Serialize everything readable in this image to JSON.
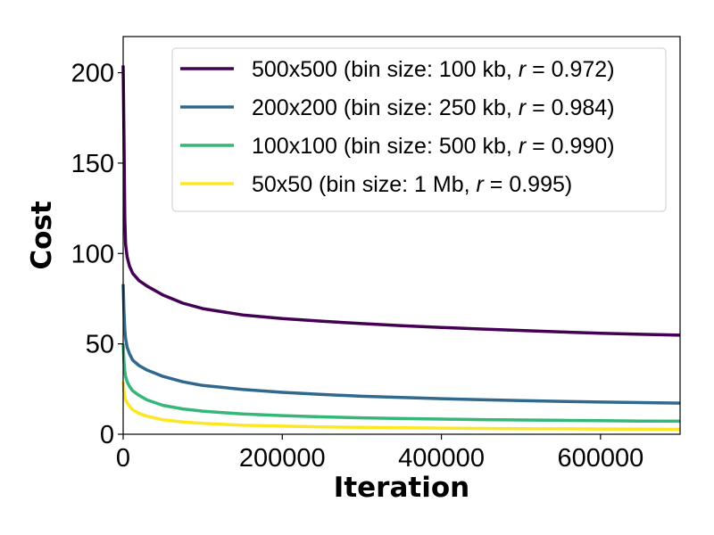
{
  "chart_data": {
    "type": "line",
    "title": "",
    "xlabel": "Iteration",
    "ylabel": "Cost",
    "xlim": [
      0,
      700000
    ],
    "ylim": [
      0,
      220
    ],
    "xticks": [
      0,
      200000,
      400000,
      600000
    ],
    "xtick_labels": [
      "0",
      "200000",
      "400000",
      "600000"
    ],
    "yticks": [
      0,
      50,
      100,
      150,
      200
    ],
    "ytick_labels": [
      "0",
      "50",
      "100",
      "150",
      "200"
    ],
    "grid": false,
    "legend_position": "top-right",
    "series": [
      {
        "name": "500x500 (bin size: 100 kb, r = 0.972)",
        "legend_prefix": "500x500 (bin size: 100 kb, ",
        "legend_r": "r",
        "legend_suffix": " = 0.972)",
        "color": "#440154",
        "x": [
          0,
          1000,
          2000,
          3000,
          5000,
          8000,
          12000,
          20000,
          30000,
          50000,
          75000,
          100000,
          150000,
          200000,
          250000,
          300000,
          350000,
          400000,
          450000,
          500000,
          550000,
          600000,
          650000,
          700000
        ],
        "y": [
          204,
          165,
          120,
          105,
          98,
          93,
          89,
          85,
          82,
          77,
          72.5,
          69.5,
          66,
          64,
          62.5,
          61.2,
          60.1,
          59.1,
          58.2,
          57.4,
          56.6,
          55.9,
          55.3,
          54.8
        ]
      },
      {
        "name": "200x200 (bin size: 250 kb, r = 0.984)",
        "legend_prefix": "200x200 (bin size: 250 kb, ",
        "legend_r": "r",
        "legend_suffix": " = 0.984)",
        "color": "#31688e",
        "x": [
          0,
          1000,
          2000,
          3000,
          5000,
          8000,
          12000,
          20000,
          30000,
          50000,
          75000,
          100000,
          150000,
          200000,
          250000,
          300000,
          350000,
          400000,
          450000,
          500000,
          550000,
          600000,
          650000,
          700000
        ],
        "y": [
          83,
          68,
          58,
          53,
          48,
          44.5,
          41,
          38,
          35.5,
          32,
          29,
          27,
          24.8,
          23.2,
          22,
          21,
          20.3,
          19.7,
          19.1,
          18.6,
          18.2,
          17.8,
          17.5,
          17.2
        ]
      },
      {
        "name": "100x100 (bin size: 500 kb, r = 0.990)",
        "legend_prefix": "100x100 (bin size: 500 kb, ",
        "legend_r": "r",
        "legend_suffix": " = 0.990)",
        "color": "#35b779",
        "x": [
          0,
          1000,
          2000,
          3000,
          5000,
          8000,
          12000,
          20000,
          30000,
          50000,
          75000,
          100000,
          150000,
          200000,
          250000,
          300000,
          350000,
          400000,
          450000,
          500000,
          550000,
          600000,
          650000,
          700000
        ],
        "y": [
          50,
          40,
          35,
          32,
          29,
          26.5,
          24,
          21.5,
          19,
          16,
          14,
          12.8,
          11.2,
          10.3,
          9.6,
          9.1,
          8.7,
          8.4,
          8.1,
          7.9,
          7.7,
          7.5,
          7.3,
          7.2
        ]
      },
      {
        "name": "50x50 (bin size: 1 Mb, r = 0.995)",
        "legend_prefix": "50x50 (bin size: 1 Mb, ",
        "legend_r": "r",
        "legend_suffix": " = 0.995)",
        "color": "#fde725",
        "x": [
          0,
          1000,
          2000,
          3000,
          5000,
          8000,
          12000,
          20000,
          30000,
          50000,
          75000,
          100000,
          150000,
          200000,
          250000,
          300000,
          350000,
          400000,
          450000,
          500000,
          550000,
          600000,
          650000,
          700000
        ],
        "y": [
          29,
          24,
          21,
          19,
          17.5,
          15.5,
          13.5,
          11.5,
          10,
          8,
          6.8,
          6,
          5,
          4.5,
          4.1,
          3.8,
          3.6,
          3.4,
          3.2,
          3.1,
          3,
          2.9,
          2.8,
          2.7
        ]
      }
    ]
  }
}
